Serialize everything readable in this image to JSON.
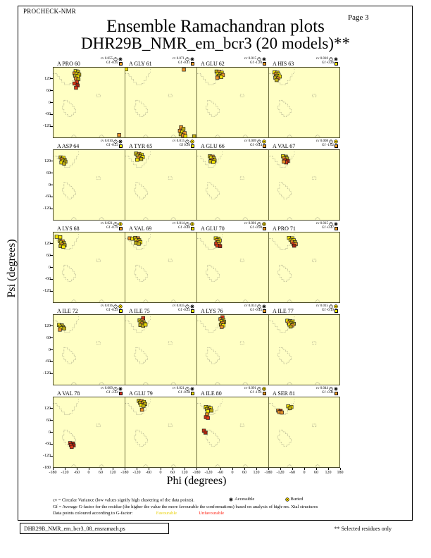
{
  "header": {
    "app_label": "PROCHECK-NMR",
    "page_label": "Page  3",
    "title": "Ensemble Ramachandran plots",
    "subtitle": "DHR29B_NMR_em_bcr3 (20 models)**"
  },
  "legend": {
    "cv_line": "cv = Circular Variance (low values signify high clustering of the data points).",
    "accessible_label": "Accessible",
    "buried_label": "Buried",
    "gf_line": "Gf = Average G-factor for the residue (the higher the value the more favourable the conformations) based on analysis of high-res. Xtal structures",
    "colour_line": "Data points coloured according to G-factor:",
    "favourable_label": "Favourable",
    "unfavourable_label": "Unfavourable"
  },
  "footer": {
    "filename": "DHR29B_NMR_em_bcr3_08_ensramach.ps",
    "note": "** Selected residues only"
  },
  "colors": {
    "plot_bg": "#FFFFC4",
    "gf_yellow": "#FFEB00",
    "gf_orange": "#F5A028",
    "gf_red": "#E03020",
    "point_colors": {
      "y": "#F5E400",
      "dy": "#BFAE14",
      "o": "#E89028",
      "r": "#DC3818",
      "dr": "#A82410"
    }
  },
  "chart_data": {
    "type": "scatter",
    "title": "Ensemble Ramachandran plots",
    "xlabel": "Phi (degrees)",
    "ylabel": "Psi (degrees)",
    "x_range": [
      -180,
      180
    ],
    "y_range": [
      -180,
      180
    ],
    "grid_layout": {
      "rows": 5,
      "cols": 4
    },
    "x_tick_labels_per_column": [
      "-180",
      "-120",
      "-60",
      "0",
      "60",
      "120"
    ],
    "x_last_label": "180",
    "y_tick_labels": [
      "120",
      "60",
      "0",
      "-60",
      "-120"
    ],
    "y_bottom_label": "-180",
    "subplots": [
      {
        "residue": "A PRO 60",
        "cv": "0.055",
        "access": "accessible",
        "gf": "-0.92",
        "gf_color": "orange",
        "points": [
          [
            -68,
            162,
            "y"
          ],
          [
            -56,
            158,
            "dy"
          ],
          [
            -74,
            150,
            "o"
          ],
          [
            -62,
            148,
            "y"
          ],
          [
            -50,
            144,
            "dy"
          ],
          [
            -70,
            138,
            "dy"
          ],
          [
            -58,
            134,
            "y"
          ],
          [
            -66,
            124,
            "o"
          ],
          [
            -54,
            120,
            "dy"
          ],
          [
            -62,
            106,
            "r"
          ],
          [
            -74,
            98,
            "r"
          ],
          [
            -58,
            88,
            "dr"
          ],
          [
            -66,
            76,
            "r"
          ],
          [
            152,
            -168,
            "o"
          ]
        ]
      },
      {
        "residue": "A GLY 61",
        "cv": "0.071",
        "access": "accessible",
        "gf": "-0.41",
        "gf_color": "orange",
        "points": [
          [
            -176,
            172,
            "y"
          ],
          [
            116,
            170,
            "o"
          ],
          [
            102,
            -128,
            "o"
          ],
          [
            114,
            -136,
            "dy"
          ],
          [
            96,
            -146,
            "o"
          ],
          [
            108,
            -152,
            "y"
          ],
          [
            120,
            -158,
            "o"
          ],
          [
            100,
            -164,
            "dy"
          ],
          [
            112,
            -170,
            "o"
          ],
          [
            124,
            -174,
            "y"
          ],
          [
            168,
            -174,
            "dy"
          ]
        ]
      },
      {
        "residue": "A GLU 62",
        "cv": "0.015",
        "access": "accessible",
        "gf": "-1.20",
        "gf_color": "orange",
        "points": [
          [
            -82,
            160,
            "dy"
          ],
          [
            -68,
            158,
            "o"
          ],
          [
            -56,
            154,
            "y"
          ],
          [
            -76,
            148,
            "y"
          ],
          [
            -62,
            146,
            "dy"
          ],
          [
            -50,
            142,
            "o"
          ],
          [
            -70,
            138,
            "dy"
          ],
          [
            -58,
            132,
            "y"
          ],
          [
            -78,
            128,
            "o"
          ]
        ]
      },
      {
        "residue": "A HIS 63",
        "cv": "0.010",
        "access": "accessible",
        "gf": "-0.26",
        "gf_color": "yellow",
        "points": [
          [
            -152,
            156,
            "y"
          ],
          [
            -138,
            154,
            "dy"
          ],
          [
            -146,
            146,
            "o"
          ],
          [
            -132,
            144,
            "y"
          ],
          [
            -140,
            138,
            "dy"
          ],
          [
            -126,
            134,
            "y"
          ],
          [
            -148,
            128,
            "dy"
          ],
          [
            -134,
            124,
            "o"
          ],
          [
            -142,
            116,
            "dy"
          ]
        ]
      },
      {
        "residue": "A ASP 64",
        "cv": "0.010",
        "access": "accessible",
        "gf": "-0.23",
        "gf_color": "yellow",
        "points": [
          [
            -144,
            142,
            "dy"
          ],
          [
            -130,
            140,
            "y"
          ],
          [
            -138,
            132,
            "o"
          ],
          [
            -124,
            130,
            "dy"
          ],
          [
            -132,
            124,
            "y"
          ],
          [
            -120,
            120,
            "dy"
          ],
          [
            -140,
            116,
            "y"
          ],
          [
            -126,
            110,
            "dy"
          ]
        ]
      },
      {
        "residue": "A TYR 65",
        "cv": "0.015",
        "access": "buried",
        "gf": "0.20",
        "gf_color": "yellow",
        "points": [
          [
            -126,
            162,
            "dy"
          ],
          [
            -110,
            160,
            "o"
          ],
          [
            -98,
            156,
            "y"
          ],
          [
            -118,
            152,
            "dy"
          ],
          [
            -104,
            148,
            "dy"
          ],
          [
            -92,
            144,
            "y"
          ],
          [
            -112,
            140,
            "o"
          ],
          [
            -100,
            134,
            "dy"
          ],
          [
            -120,
            130,
            "y"
          ]
        ]
      },
      {
        "residue": "A GLU 66",
        "cv": "0.009",
        "access": "buried",
        "gf": "-0.44",
        "gf_color": "orange",
        "points": [
          [
            -116,
            148,
            "dy"
          ],
          [
            -102,
            146,
            "o"
          ],
          [
            -110,
            140,
            "y"
          ],
          [
            -96,
            138,
            "dy"
          ],
          [
            -104,
            130,
            "o"
          ],
          [
            -92,
            126,
            "dy"
          ],
          [
            -112,
            122,
            "dy"
          ],
          [
            -98,
            118,
            "y"
          ]
        ]
      },
      {
        "residue": "A VAL 67",
        "cv": "0.008",
        "access": "buried",
        "gf": "-1.02",
        "gf_color": "orange",
        "points": [
          [
            -110,
            148,
            "y"
          ],
          [
            -96,
            146,
            "dy"
          ],
          [
            -104,
            138,
            "o"
          ],
          [
            -90,
            136,
            "dy"
          ],
          [
            -98,
            128,
            "r"
          ],
          [
            -86,
            124,
            "dr"
          ],
          [
            -94,
            116,
            "r"
          ],
          [
            -106,
            120,
            "o"
          ]
        ]
      },
      {
        "residue": "A LYS 68",
        "cv": "0.021",
        "access": "buried",
        "gf": "-0.70",
        "gf_color": "orange",
        "points": [
          [
            -164,
            158,
            "y"
          ],
          [
            -146,
            156,
            "y"
          ],
          [
            -148,
            136,
            "dy"
          ],
          [
            -134,
            134,
            "o"
          ],
          [
            -142,
            128,
            "y"
          ],
          [
            -128,
            126,
            "dy"
          ],
          [
            -136,
            118,
            "o"
          ],
          [
            -124,
            114,
            "dy"
          ],
          [
            -144,
            110,
            "dy"
          ],
          [
            -130,
            106,
            "y"
          ]
        ]
      },
      {
        "residue": "A VAL 69",
        "cv": "0.014",
        "access": "buried",
        "gf": "-0.40",
        "gf_color": "yellow",
        "points": [
          [
            -158,
            150,
            "o"
          ],
          [
            -144,
            148,
            "y"
          ],
          [
            -130,
            152,
            "dy"
          ],
          [
            -116,
            150,
            "o"
          ],
          [
            -124,
            142,
            "y"
          ],
          [
            -110,
            140,
            "dy"
          ],
          [
            -118,
            132,
            "o"
          ],
          [
            -104,
            130,
            "y"
          ],
          [
            -126,
            126,
            "dy"
          ],
          [
            -112,
            122,
            "dy"
          ]
        ]
      },
      {
        "residue": "A GLU 70",
        "cv": "0.001",
        "access": "buried",
        "gf": "-0.90",
        "gf_color": "orange",
        "points": [
          [
            -86,
            150,
            "y"
          ],
          [
            -72,
            148,
            "dy"
          ],
          [
            -80,
            140,
            "o"
          ],
          [
            -66,
            138,
            "y"
          ],
          [
            -74,
            130,
            "dy"
          ],
          [
            -84,
            122,
            "r"
          ],
          [
            -70,
            120,
            "o"
          ],
          [
            -78,
            112,
            "r"
          ],
          [
            -64,
            110,
            "dr"
          ]
        ]
      },
      {
        "residue": "A PRO 71",
        "cv": "0.015",
        "access": "accessible",
        "gf": "-0.47",
        "gf_color": "orange",
        "points": [
          [
            -80,
            152,
            "y"
          ],
          [
            -64,
            150,
            "y"
          ],
          [
            -72,
            142,
            "dy"
          ],
          [
            -56,
            140,
            "y"
          ],
          [
            -64,
            132,
            "o"
          ],
          [
            -50,
            130,
            "dy"
          ],
          [
            -58,
            122,
            "r"
          ],
          [
            -46,
            120,
            "o"
          ],
          [
            -54,
            112,
            "dr"
          ]
        ]
      },
      {
        "residue": "A ILE 72",
        "cv": "0.016",
        "access": "buried",
        "gf": "-0.29",
        "gf_color": "yellow",
        "points": [
          [
            -152,
            128,
            "y"
          ],
          [
            -138,
            126,
            "dy"
          ],
          [
            -146,
            120,
            "y"
          ],
          [
            -132,
            118,
            "dy"
          ],
          [
            -140,
            112,
            "y"
          ],
          [
            -126,
            110,
            "dy"
          ],
          [
            -148,
            104,
            "o"
          ]
        ]
      },
      {
        "residue": "A ILE 75",
        "cv": "0.035",
        "access": "accessible",
        "gf": "-0.25",
        "gf_color": "yellow",
        "points": [
          [
            -90,
            164,
            "r"
          ],
          [
            -108,
            152,
            "dy"
          ],
          [
            -94,
            150,
            "o"
          ],
          [
            -102,
            144,
            "y"
          ],
          [
            -88,
            142,
            "dy"
          ],
          [
            -96,
            136,
            "o"
          ],
          [
            -82,
            134,
            "y"
          ],
          [
            -104,
            128,
            "dy"
          ],
          [
            -90,
            124,
            "dy"
          ],
          [
            -78,
            130,
            "y"
          ]
        ]
      },
      {
        "residue": "A LYS 76",
        "cv": "0.014",
        "access": "accessible",
        "gf": "-0.45",
        "gf_color": "orange",
        "points": [
          [
            -52,
            168,
            "r"
          ],
          [
            -62,
            158,
            "o"
          ],
          [
            -48,
            154,
            "dy"
          ],
          [
            -56,
            148,
            "y"
          ],
          [
            -44,
            144,
            "dy"
          ],
          [
            -52,
            138,
            "o"
          ],
          [
            -60,
            130,
            "dy"
          ],
          [
            -48,
            126,
            "y"
          ],
          [
            -56,
            118,
            "o"
          ]
        ]
      },
      {
        "residue": "A ILE 77",
        "cv": "0.015",
        "access": "buried",
        "gf": "-0.19",
        "gf_color": "yellow",
        "points": [
          [
            -88,
            150,
            "y"
          ],
          [
            -74,
            148,
            "dy"
          ],
          [
            -62,
            146,
            "y"
          ],
          [
            -82,
            140,
            "o"
          ],
          [
            -68,
            138,
            "dy"
          ],
          [
            -56,
            134,
            "dy"
          ],
          [
            -78,
            130,
            "y"
          ],
          [
            -64,
            126,
            "o"
          ],
          [
            -72,
            120,
            "dy"
          ]
        ]
      },
      {
        "residue": "A VAL 78",
        "cv": "0.009",
        "access": "accessible",
        "gf": "-2.44",
        "gf_color": "red",
        "points": [
          [
            -96,
            -56,
            "r"
          ],
          [
            -82,
            -58,
            "dr"
          ],
          [
            -92,
            -66,
            "r"
          ],
          [
            -78,
            -68,
            "dr"
          ],
          [
            -88,
            -76,
            "r"
          ]
        ]
      },
      {
        "residue": "A GLU 79",
        "cv": "0.021",
        "access": "accessible",
        "gf": "-0.60",
        "gf_color": "yellow",
        "points": [
          [
            -112,
            162,
            "dy"
          ],
          [
            -98,
            160,
            "o"
          ],
          [
            -86,
            156,
            "y"
          ],
          [
            -106,
            152,
            "dy"
          ],
          [
            -92,
            148,
            "o"
          ],
          [
            -80,
            146,
            "dy"
          ],
          [
            -100,
            140,
            "y"
          ],
          [
            -88,
            136,
            "dy"
          ],
          [
            -96,
            116,
            "o"
          ]
        ]
      },
      {
        "residue": "A ILE 80",
        "cv": "0.091",
        "access": "buried",
        "gf": "-1.01",
        "gf_color": "orange",
        "points": [
          [
            -136,
            130,
            "y"
          ],
          [
            -122,
            128,
            "dy"
          ],
          [
            -112,
            124,
            "y"
          ],
          [
            -130,
            120,
            "dy"
          ],
          [
            -118,
            116,
            "o"
          ],
          [
            -108,
            112,
            "dy"
          ],
          [
            -126,
            108,
            "y"
          ],
          [
            -130,
            92,
            "o"
          ],
          [
            -136,
            78,
            "r"
          ],
          [
            -126,
            74,
            "r"
          ],
          [
            -146,
            8,
            "r"
          ],
          [
            -138,
            -2,
            "dr"
          ]
        ]
      },
      {
        "residue": "A SER 81",
        "cv": "0.044",
        "access": "accessible",
        "gf": "-0.41",
        "gf_color": "orange",
        "points": [
          [
            -134,
            112,
            "o"
          ],
          [
            -122,
            110,
            "dr"
          ],
          [
            -128,
            104,
            "o"
          ],
          [
            -116,
            102,
            "o"
          ],
          [
            -84,
            134,
            "y"
          ],
          [
            -68,
            130,
            "y"
          ],
          [
            -76,
            124,
            "dy"
          ]
        ]
      }
    ]
  }
}
